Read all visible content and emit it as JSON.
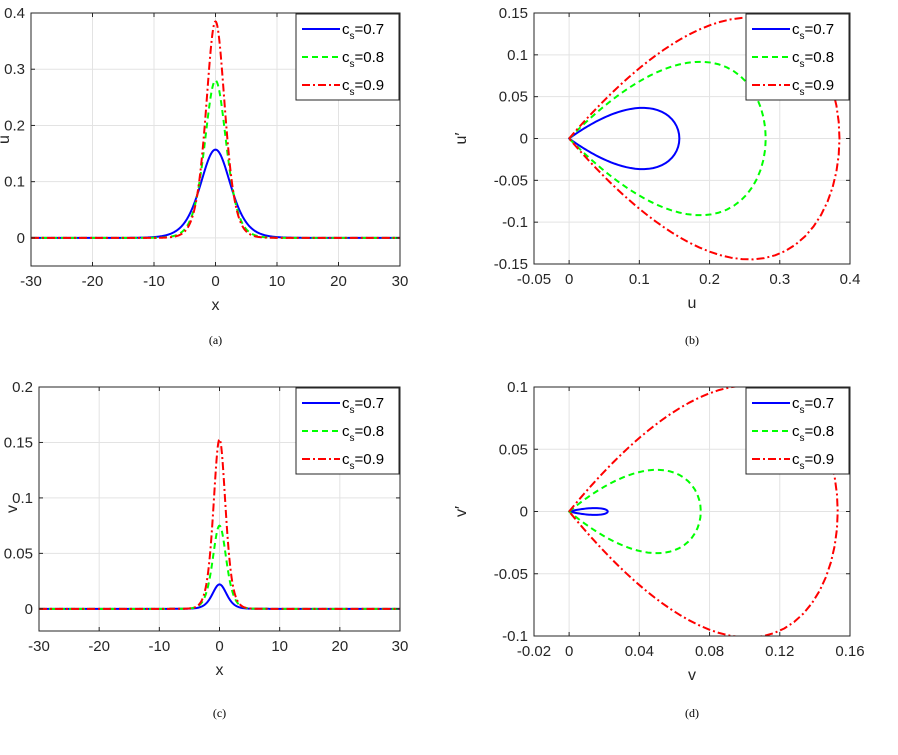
{
  "colors": {
    "blue": "#0000ff",
    "green": "#00ff00",
    "red": "#ff0000"
  },
  "chart_data": [
    {
      "id": "a",
      "type": "line",
      "caption": "(a)",
      "xlabel": "x",
      "ylabel": "u",
      "xlim": [
        -30,
        30
      ],
      "ylim": [
        -0.05,
        0.4
      ],
      "xticks": [
        -30,
        -20,
        -10,
        0,
        10,
        20,
        30
      ],
      "xticklabels": [
        "-30",
        "-20",
        "-10",
        "0",
        "10",
        "20",
        "30"
      ],
      "yticks": [
        0,
        0.1,
        0.2,
        0.3,
        0.4
      ],
      "yticklabels": [
        "0",
        "0.1",
        "0.2",
        "0.3",
        "0.4"
      ],
      "grid": true,
      "legend_position": "top-right",
      "series": [
        {
          "name": "c_s=0.7",
          "name_base": "c",
          "name_sub": "s",
          "name_rest": "=0.7",
          "style": "solid",
          "color": "#0000ff",
          "kind": "sech2",
          "amplitude": 0.157,
          "width": 3.3
        },
        {
          "name": "c_s=0.8",
          "name_base": "c",
          "name_sub": "s",
          "name_rest": "=0.8",
          "style": "dashed",
          "color": "#00ff00",
          "kind": "sech2",
          "amplitude": 0.28,
          "width": 2.35
        },
        {
          "name": "c_s=0.9",
          "name_base": "c",
          "name_sub": "s",
          "name_rest": "=0.9",
          "style": "dashdot",
          "color": "#ff0000",
          "kind": "sech2",
          "amplitude": 0.385,
          "width": 2.05
        }
      ]
    },
    {
      "id": "b",
      "type": "line",
      "caption": "(b)",
      "xlabel": "u",
      "ylabel": "u′",
      "xlim": [
        -0.05,
        0.4
      ],
      "ylim": [
        -0.15,
        0.15
      ],
      "xticks": [
        -0.05,
        0,
        0.1,
        0.2,
        0.3,
        0.4
      ],
      "xticklabels": [
        "-0.05",
        "0",
        "0.1",
        "0.2",
        "0.3",
        "0.4"
      ],
      "yticks": [
        -0.15,
        -0.1,
        -0.05,
        0,
        0.05,
        0.1,
        0.15
      ],
      "yticklabels": [
        "-0.15",
        "-0.1",
        "-0.05",
        "0",
        "0.05",
        "0.1",
        "0.15"
      ],
      "grid": true,
      "legend_position": "top-right",
      "series": [
        {
          "name": "c_s=0.7",
          "name_base": "c",
          "name_sub": "s",
          "name_rest": "=0.7",
          "style": "solid",
          "color": "#0000ff",
          "kind": "phase",
          "amplitude": 0.157,
          "width": 3.3
        },
        {
          "name": "c_s=0.8",
          "name_base": "c",
          "name_sub": "s",
          "name_rest": "=0.8",
          "style": "dashed",
          "color": "#00ff00",
          "kind": "phase",
          "amplitude": 0.28,
          "width": 2.35
        },
        {
          "name": "c_s=0.9",
          "name_base": "c",
          "name_sub": "s",
          "name_rest": "=0.9",
          "style": "dashdot",
          "color": "#ff0000",
          "kind": "phase",
          "amplitude": 0.385,
          "width": 2.05
        }
      ]
    },
    {
      "id": "c",
      "type": "line",
      "caption": "(c)",
      "xlabel": "x",
      "ylabel": "v",
      "xlim": [
        -30,
        30
      ],
      "ylim": [
        -0.02,
        0.2
      ],
      "xticks": [
        -30,
        -20,
        -10,
        0,
        10,
        20,
        30
      ],
      "xticklabels": [
        "-30",
        "-20",
        "-10",
        "0",
        "10",
        "20",
        "30"
      ],
      "yticks": [
        0,
        0.05,
        0.1,
        0.15,
        0.2
      ],
      "yticklabels": [
        "0",
        "0.05",
        "0.1",
        "0.15",
        "0.2"
      ],
      "grid": true,
      "legend_position": "top-right",
      "series": [
        {
          "name": "c_s=0.7",
          "name_base": "c",
          "name_sub": "s",
          "name_rest": "=0.7",
          "style": "solid",
          "color": "#0000ff",
          "kind": "sech2",
          "amplitude": 0.022,
          "width": 1.6
        },
        {
          "name": "c_s=0.8",
          "name_base": "c",
          "name_sub": "s",
          "name_rest": "=0.8",
          "style": "dashed",
          "color": "#00ff00",
          "kind": "sech2",
          "amplitude": 0.075,
          "width": 1.5
        },
        {
          "name": "c_s=0.9",
          "name_base": "c",
          "name_sub": "s",
          "name_rest": "=0.9",
          "style": "dashdot",
          "color": "#ff0000",
          "kind": "sech2",
          "amplitude": 0.153,
          "width": 1.35
        }
      ]
    },
    {
      "id": "d",
      "type": "line",
      "caption": "(d)",
      "xlabel": "v",
      "ylabel": "v′",
      "xlim": [
        -0.02,
        0.16
      ],
      "ylim": [
        -0.1,
        0.1
      ],
      "xticks": [
        -0.02,
        0,
        0.04,
        0.08,
        0.12,
        0.16
      ],
      "xticklabels": [
        "-0.02",
        "0",
        "0.04",
        "0.08",
        "0.12",
        "0.16"
      ],
      "yticks": [
        -0.1,
        -0.05,
        0,
        0.05,
        0.1
      ],
      "yticklabels": [
        "-0.1",
        "-0.05",
        "0",
        "0.05",
        "0.1"
      ],
      "grid": true,
      "legend_position": "top-right",
      "series": [
        {
          "name": "c_s=0.7",
          "name_base": "c",
          "name_sub": "s",
          "name_rest": "=0.7",
          "style": "solid",
          "color": "#0000ff",
          "kind": "phase",
          "amplitude": 0.022,
          "width": 1.6,
          "yscale": 0.26
        },
        {
          "name": "c_s=0.8",
          "name_base": "c",
          "name_sub": "s",
          "name_rest": "=0.8",
          "style": "dashed",
          "color": "#00ff00",
          "kind": "phase",
          "amplitude": 0.075,
          "width": 1.5,
          "yscale": 0.87
        },
        {
          "name": "c_s=0.9",
          "name_base": "c",
          "name_sub": "s",
          "name_rest": "=0.9",
          "style": "dashdot",
          "color": "#ff0000",
          "kind": "phase",
          "amplitude": 0.153,
          "width": 1.35,
          "yscale": 1.16
        }
      ]
    }
  ]
}
